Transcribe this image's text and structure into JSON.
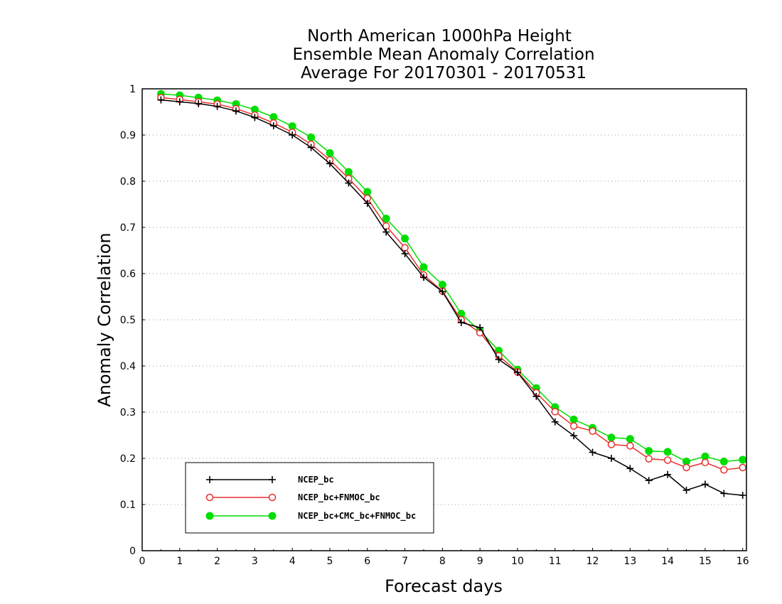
{
  "chart_data": {
    "type": "line",
    "title": [
      "North American 1000hPa Height",
      "Ensemble Mean Anomaly Correlation",
      "Average For 20170301 - 20170531"
    ],
    "xlabel": "Forecast days",
    "ylabel": "Anomaly Correlation",
    "xlim": [
      0,
      16.1
    ],
    "ylim": [
      0,
      1
    ],
    "xticks": [
      "0",
      "1",
      "2",
      "3",
      "4",
      "5",
      "6",
      "7",
      "8",
      "9",
      "10",
      "11",
      "12",
      "13",
      "14",
      "15",
      "16"
    ],
    "yticks": [
      "0",
      "0.1",
      "0.2",
      "0.3",
      "0.4",
      "0.5",
      "0.6",
      "0.7",
      "0.8",
      "0.9",
      "1"
    ],
    "grid": "horizontal dotted",
    "legend_position": "bottom-left",
    "x": [
      0.5,
      1,
      1.5,
      2,
      2.5,
      3,
      3.5,
      4,
      4.5,
      5,
      5.5,
      6,
      6.5,
      7,
      7.5,
      8,
      8.5,
      9,
      9.5,
      10,
      10.5,
      11,
      11.5,
      12,
      12.5,
      13,
      13.5,
      14,
      14.5,
      15,
      15.5,
      16
    ],
    "series": [
      {
        "name": "NCEP_bc",
        "color": "#000000",
        "marker": "plus",
        "values": [
          0.976,
          0.972,
          0.968,
          0.962,
          0.952,
          0.938,
          0.92,
          0.9,
          0.873,
          0.838,
          0.796,
          0.752,
          0.69,
          0.643,
          0.592,
          0.561,
          0.494,
          0.483,
          0.414,
          0.386,
          0.334,
          0.279,
          0.249,
          0.213,
          0.2,
          0.178,
          0.152,
          0.165,
          0.131,
          0.144,
          0.124,
          0.12
        ]
      },
      {
        "name": "NCEP_bc+FNMOC_bc",
        "color": "#e83030",
        "marker": "open-circle",
        "values": [
          0.981,
          0.977,
          0.972,
          0.967,
          0.957,
          0.943,
          0.926,
          0.906,
          0.88,
          0.846,
          0.806,
          0.763,
          0.703,
          0.656,
          0.597,
          0.562,
          0.5,
          0.472,
          0.422,
          0.387,
          0.342,
          0.301,
          0.27,
          0.259,
          0.23,
          0.227,
          0.199,
          0.196,
          0.18,
          0.191,
          0.175,
          0.18
        ]
      },
      {
        "name": "NCEP_bc+CMC_bc+FNMOC_bc",
        "color": "#00dd00",
        "marker": "filled-circle",
        "values": [
          0.989,
          0.986,
          0.981,
          0.975,
          0.967,
          0.955,
          0.939,
          0.919,
          0.895,
          0.861,
          0.82,
          0.777,
          0.719,
          0.676,
          0.614,
          0.576,
          0.513,
          0.476,
          0.433,
          0.392,
          0.352,
          0.311,
          0.284,
          0.266,
          0.245,
          0.242,
          0.216,
          0.214,
          0.193,
          0.204,
          0.193,
          0.197
        ]
      }
    ]
  }
}
